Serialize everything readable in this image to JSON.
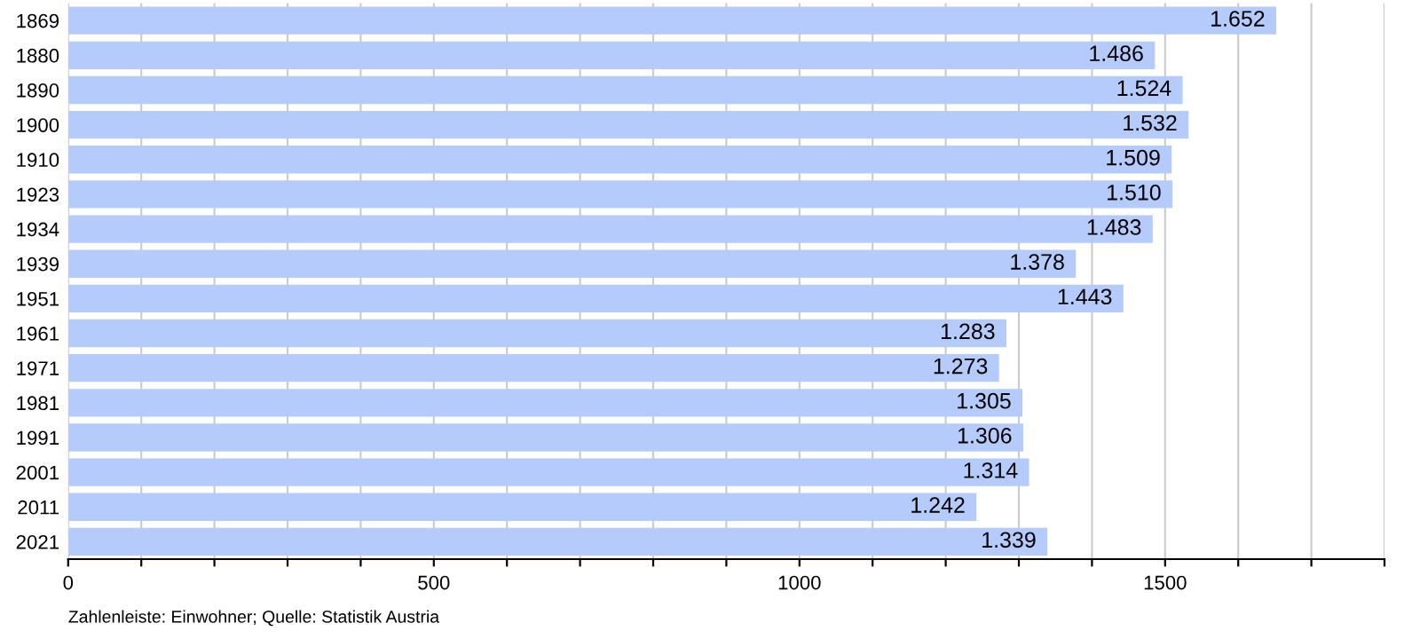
{
  "chart_data": {
    "type": "bar",
    "orientation": "horizontal",
    "categories": [
      "1869",
      "1880",
      "1890",
      "1900",
      "1910",
      "1923",
      "1934",
      "1939",
      "1951",
      "1961",
      "1971",
      "1981",
      "1991",
      "2001",
      "2011",
      "2021"
    ],
    "values": [
      1652,
      1486,
      1524,
      1532,
      1509,
      1510,
      1483,
      1378,
      1443,
      1283,
      1273,
      1305,
      1306,
      1314,
      1242,
      1339
    ],
    "value_labels": [
      "1.652",
      "1.486",
      "1.524",
      "1.532",
      "1.509",
      "1.510",
      "1.483",
      "1.378",
      "1.443",
      "1.283",
      "1.273",
      "1.305",
      "1.306",
      "1.314",
      "1.242",
      "1.339"
    ],
    "color": "#b4cbfb",
    "xlim": [
      0,
      1800
    ],
    "xticks": [
      0,
      {
        "value": 100,
        "label": null
      },
      {
        "value": 200,
        "label": null
      },
      {
        "value": 300,
        "label": null
      },
      {
        "value": 400,
        "label": null
      },
      500,
      {
        "value": 600,
        "label": null
      },
      {
        "value": 700,
        "label": null
      },
      {
        "value": 800,
        "label": null
      },
      {
        "value": 900,
        "label": null
      },
      1000,
      {
        "value": 1100,
        "label": null
      },
      {
        "value": 1200,
        "label": null
      },
      {
        "value": 1300,
        "label": null
      },
      {
        "value": 1400,
        "label": null
      },
      1500,
      {
        "value": 1600,
        "label": null
      },
      {
        "value": 1700,
        "label": null
      },
      {
        "value": 1800,
        "label": null
      }
    ],
    "grid": "x",
    "annotations": [
      "Zahlenleiste: Einwohner; Quelle: Statistik Austria"
    ]
  }
}
